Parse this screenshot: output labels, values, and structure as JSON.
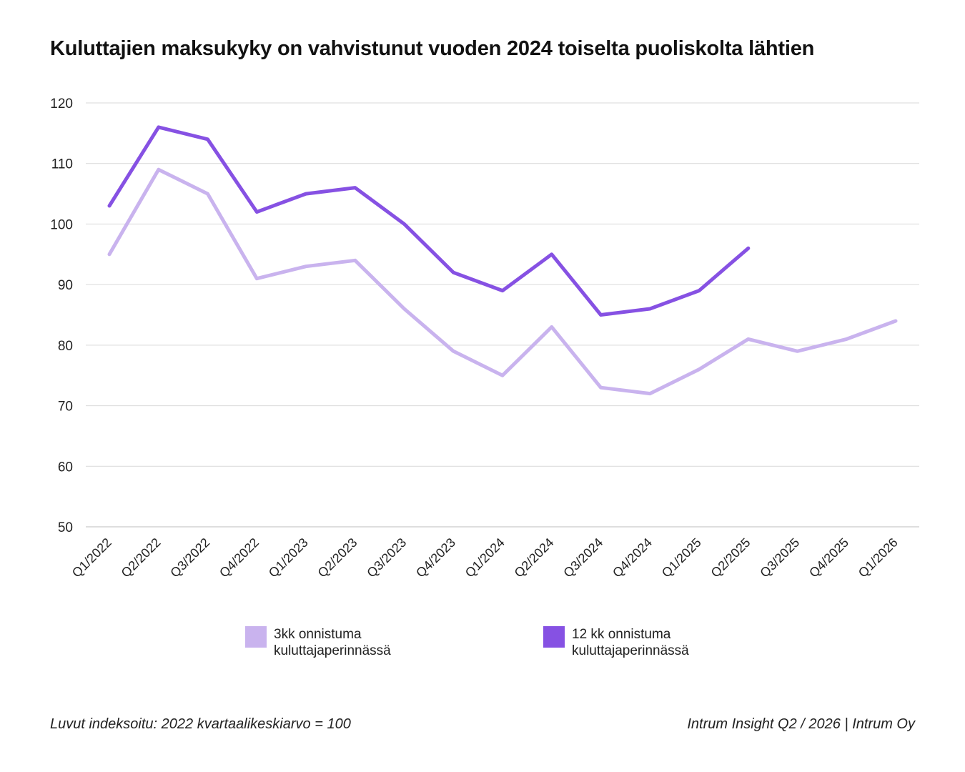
{
  "chart_data": {
    "type": "line",
    "title": "Kuluttajien maksukyky on vahvistunut vuoden 2024 toiselta puoliskolta lähtien",
    "categories": [
      "Q1/2022",
      "Q2/2022",
      "Q3/2022",
      "Q4/2022",
      "Q1/2023",
      "Q2/2023",
      "Q3/2023",
      "Q4/2023",
      "Q1/2024",
      "Q2/2024",
      "Q3/2024",
      "Q4/2024",
      "Q1/2025",
      "Q2/2025",
      "Q3/2025",
      "Q4/2025",
      "Q1/2026"
    ],
    "series": [
      {
        "name": "3kk onnistuma kuluttajaperinnässä",
        "color": "#c9b3ee",
        "values": [
          95,
          109,
          105,
          91,
          93,
          94,
          86,
          79,
          75,
          83,
          73,
          72,
          76,
          81,
          79,
          81,
          84
        ]
      },
      {
        "name": "12 kk onnistuma kuluttajaperinnässä",
        "color": "#8651e3",
        "values": [
          103,
          116,
          114,
          102,
          105,
          106,
          100,
          92,
          89,
          95,
          85,
          86,
          89,
          96,
          null,
          null,
          null
        ]
      }
    ],
    "ylim": [
      50,
      120
    ],
    "yticks": [
      50,
      60,
      70,
      80,
      90,
      100,
      110,
      120
    ],
    "grid": true,
    "legend_position": "bottom"
  },
  "footer": {
    "note": "Luvut indeksoitu: 2022 kvartaalikeskiarvo = 100",
    "source": "Intrum Insight Q2 / 2026 | Intrum Oy"
  }
}
